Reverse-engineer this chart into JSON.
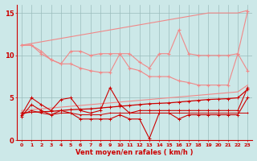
{
  "x": [
    0,
    1,
    2,
    3,
    4,
    5,
    6,
    7,
    8,
    9,
    10,
    11,
    12,
    13,
    14,
    15,
    16,
    17,
    18,
    19,
    20,
    21,
    22,
    23
  ],
  "line_light1": [
    11.2,
    11.2,
    10.2,
    9.5,
    9.0,
    10.5,
    10.5,
    10.0,
    10.2,
    10.2,
    10.2,
    10.2,
    9.2,
    8.5,
    10.2,
    10.2,
    13.0,
    10.2,
    10.0,
    10.0,
    10.0,
    10.0,
    10.2,
    15.2
  ],
  "line_light2": [
    11.2,
    11.2,
    10.5,
    9.5,
    9.0,
    9.0,
    8.5,
    8.2,
    8.0,
    8.0,
    10.2,
    8.5,
    8.2,
    7.5,
    7.5,
    7.5,
    7.0,
    6.8,
    6.5,
    6.5,
    6.5,
    6.5,
    10.2,
    8.2
  ],
  "diag_upper": [
    11.2,
    11.4,
    11.6,
    11.8,
    12.0,
    12.2,
    12.4,
    12.6,
    12.8,
    13.0,
    13.2,
    13.4,
    13.6,
    13.8,
    14.0,
    14.2,
    14.4,
    14.6,
    14.8,
    15.0,
    15.0,
    15.0,
    15.0,
    15.3
  ],
  "diag_lower_light": [
    3.5,
    3.6,
    3.7,
    3.8,
    3.9,
    4.0,
    4.1,
    4.2,
    4.3,
    4.4,
    4.5,
    4.6,
    4.7,
    4.8,
    4.9,
    5.0,
    5.1,
    5.2,
    5.3,
    5.4,
    5.5,
    5.6,
    5.7,
    6.5
  ],
  "line_dark_trend": [
    3.2,
    3.3,
    3.35,
    3.4,
    3.5,
    3.6,
    3.65,
    3.7,
    3.8,
    3.9,
    4.0,
    4.1,
    4.2,
    4.3,
    4.35,
    4.4,
    4.5,
    4.6,
    4.7,
    4.8,
    4.85,
    4.9,
    5.0,
    6.0
  ],
  "line_dark_flat": [
    3.0,
    3.5,
    3.2,
    3.0,
    3.2,
    3.2,
    3.0,
    3.0,
    3.0,
    3.2,
    3.2,
    3.2,
    3.2,
    3.2,
    3.2,
    3.2,
    3.2,
    3.2,
    3.2,
    3.2,
    3.2,
    3.2,
    3.2,
    3.2
  ],
  "line_dark_zigzag": [
    3.0,
    5.0,
    4.2,
    3.5,
    4.8,
    5.0,
    3.5,
    3.2,
    3.5,
    6.2,
    4.2,
    3.2,
    3.5,
    3.5,
    3.5,
    3.5,
    3.5,
    3.5,
    3.5,
    3.5,
    3.5,
    3.5,
    3.5,
    6.2
  ],
  "line_dark_bottom": [
    2.8,
    4.2,
    3.5,
    3.0,
    3.5,
    3.2,
    2.5,
    2.5,
    2.5,
    2.5,
    3.0,
    2.5,
    2.5,
    0.2,
    3.2,
    3.2,
    2.5,
    3.0,
    3.0,
    3.0,
    3.0,
    3.0,
    3.0,
    5.0
  ],
  "background_color": "#cce8e8",
  "grid_color": "#9bbcbc",
  "line_color_light": "#f08888",
  "line_color_dark": "#cc0000",
  "xlabel": "Vent moyen/en rafales ( km/h )",
  "ylim": [
    0,
    16
  ],
  "yticks": [
    0,
    5,
    10,
    15
  ],
  "xlim": [
    -0.5,
    23.5
  ],
  "figwidth": 3.2,
  "figheight": 2.0,
  "dpi": 100
}
